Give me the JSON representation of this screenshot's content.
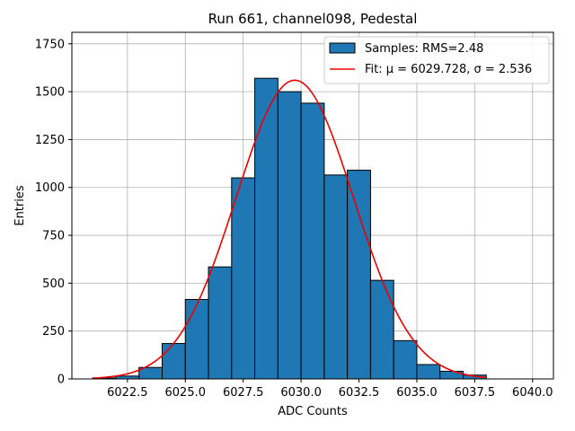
{
  "chart_data": {
    "type": "bar",
    "title": "Run 661, channel098, Pedestal",
    "xlabel": "ADC Counts",
    "ylabel": "Entries",
    "xlim": [
      6020.1,
      6040.9
    ],
    "ylim": [
      0,
      1810
    ],
    "xticks": [
      6022.5,
      6025.0,
      6027.5,
      6030.0,
      6032.5,
      6035.0,
      6037.5,
      6040.0
    ],
    "xtick_labels": [
      "6022.5",
      "6025.0",
      "6027.5",
      "6030.0",
      "6032.5",
      "6035.0",
      "6037.5",
      "6040.0"
    ],
    "yticks": [
      0,
      250,
      500,
      750,
      1000,
      1250,
      1500,
      1750
    ],
    "ytick_labels": [
      "0",
      "250",
      "500",
      "750",
      "1000",
      "1250",
      "1500",
      "1750"
    ],
    "grid": true,
    "legend_position": "top-right",
    "colors": {
      "bar": "#1f77b4",
      "bar_edge": "#000000",
      "fit": "#ee0000"
    },
    "histogram": {
      "name": "Samples: RMS=2.48",
      "bin_edges": [
        6021,
        6022,
        6023,
        6024,
        6025,
        6026,
        6027,
        6028,
        6029,
        6030,
        6031,
        6032,
        6033,
        6034,
        6035,
        6036,
        6037,
        6038
      ],
      "counts": [
        5,
        15,
        60,
        185,
        415,
        585,
        1050,
        1570,
        1500,
        1440,
        1065,
        1090,
        515,
        200,
        75,
        40,
        20
      ]
    },
    "fit": {
      "name": "Fit: μ = 6029.728, σ = 2.536",
      "mu": 6029.728,
      "sigma": 2.536,
      "amplitude": 1560,
      "x_range": [
        6021,
        6038
      ]
    }
  }
}
